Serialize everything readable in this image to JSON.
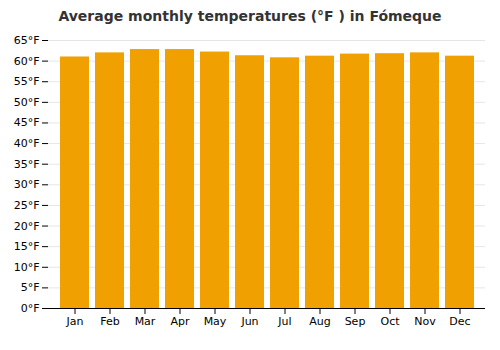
{
  "chart_data": {
    "type": "bar",
    "title": "Average monthly temperatures (°F ) in Fómeque",
    "categories": [
      "Jan",
      "Feb",
      "Mar",
      "Apr",
      "May",
      "Jun",
      "Jul",
      "Aug",
      "Sep",
      "Oct",
      "Nov",
      "Dec"
    ],
    "values": [
      61.0,
      62.0,
      62.8,
      62.8,
      62.2,
      61.3,
      60.8,
      61.2,
      61.7,
      61.8,
      62.0,
      61.2
    ],
    "color": "#F0A000",
    "ylim": [
      0,
      65
    ],
    "yticks": [
      {
        "value": 0,
        "label": "0°F"
      },
      {
        "value": 5,
        "label": "5°F"
      },
      {
        "value": 10,
        "label": "10°F"
      },
      {
        "value": 15,
        "label": "15°F"
      },
      {
        "value": 20,
        "label": "20°F"
      },
      {
        "value": 25,
        "label": "25°F"
      },
      {
        "value": 30,
        "label": "30°F"
      },
      {
        "value": 35,
        "label": "35°F"
      },
      {
        "value": 40,
        "label": "40°F"
      },
      {
        "value": 45,
        "label": "45°F"
      },
      {
        "value": 50,
        "label": "50°F"
      },
      {
        "value": 55,
        "label": "55°F"
      },
      {
        "value": 60,
        "label": "60°F"
      },
      {
        "value": 65,
        "label": "65°F"
      }
    ],
    "grid": true
  }
}
